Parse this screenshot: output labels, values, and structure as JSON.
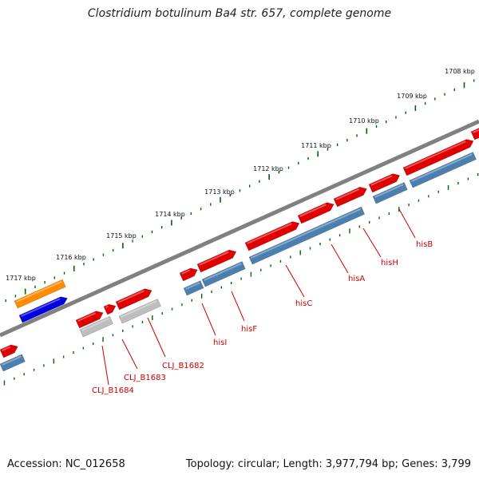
{
  "title": "Clostridium botulinum Ba4 str. 657, complete genome",
  "footer": {
    "accession": "Accession: NC_012658",
    "stats": "Topology: circular; Length: 3,977,794 bp; Genes: 3,799"
  },
  "ruler": {
    "unit": "kbp",
    "ticks": [
      "1708 kbp",
      "1709 kbp",
      "1710 kbp",
      "1711 kbp",
      "1712 kbp",
      "1713 kbp",
      "1714 kbp",
      "1715 kbp",
      "1716 kbp",
      "1717 kbp"
    ]
  },
  "gene_labels": [
    "hisB",
    "hisH",
    "hisA",
    "hisC",
    "hisF",
    "hisI",
    "CLJ_B1682",
    "CLJ_B1683",
    "CLJ_B1684"
  ],
  "colors": {
    "cds_forward": "#e00000",
    "gene_blue": "#4a7fb0",
    "pseudo_gray": "#bdbdbd",
    "orange_feature": "#ff8c00",
    "blue_feature": "#0000e0",
    "backbone": "#808080",
    "tick_green": "#006400",
    "label_red": "#cc0000"
  }
}
